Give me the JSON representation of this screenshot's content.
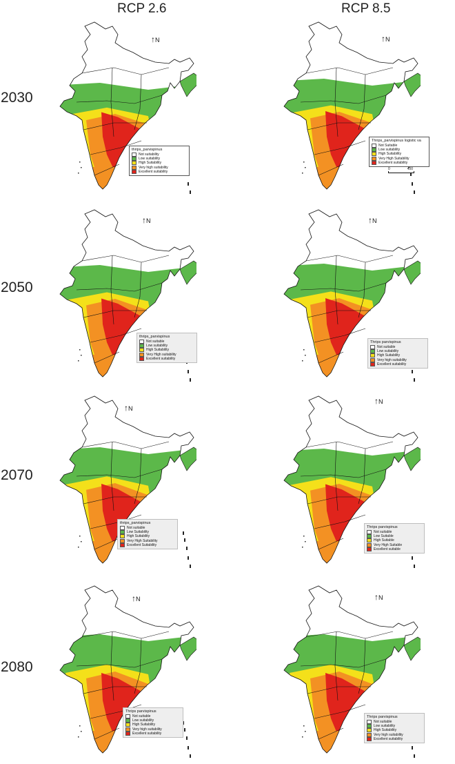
{
  "headers": {
    "col1": "RCP 2.6",
    "col2": "RCP 8.5"
  },
  "years": [
    "2030",
    "2050",
    "2070",
    "2080"
  ],
  "north_label": "N",
  "colors": {
    "not_suitable": "#ffffff",
    "low": "#5cb84a",
    "high": "#f4e01a",
    "very_high": "#f39123",
    "excellent": "#e0241c",
    "boundary": "#111111"
  },
  "legends": {
    "r0c0": {
      "title": "thrips_parvispinus",
      "items": [
        "Not suitability",
        "Low suitability",
        "High Suitability",
        "Very high suitability",
        "Excellent suitability"
      ]
    },
    "r0c1": {
      "title": "Thrips_parvispinus logistic va",
      "items": [
        "Not Suitable",
        "Low suitability",
        "High Suitability",
        "Very High Suitability",
        "Excellent suitability"
      ],
      "scale": [
        "0",
        "400"
      ]
    },
    "r1c0": {
      "title": "thrips_parvispinus",
      "items": [
        "Not suitable",
        "Low suitability",
        "High Suitability",
        "Very High suitability",
        "Excellent suitability"
      ]
    },
    "r1c1": {
      "title": "Thrips parvispinus",
      "items": [
        "Not suitable",
        "Low suitability",
        "High Suitability",
        "Very high suitability",
        "Excellent suitability"
      ]
    },
    "r2c0": {
      "title": "thrips_parvispinus",
      "items": [
        "Not suitable",
        "Low Suitability",
        "High Suitability",
        "Very High Suitability",
        "Excellent Suitability"
      ]
    },
    "r2c1": {
      "title": "Thrips parvispinus",
      "items": [
        "Not suitable",
        "Low Suitable",
        "High Suitable",
        "Very High Suitable",
        "Excellent suitable"
      ]
    },
    "r3c0": {
      "title": "Thrips parvispinus",
      "items": [
        "Not suitable",
        "Low suitability",
        "High Suitability",
        "Very high suitability",
        "Excellent suitability"
      ]
    },
    "r3c1": {
      "title": "Thrips parvispinus",
      "items": [
        "Not suitable",
        "Low suitability",
        "High Suitability",
        "Very high suitability",
        "Excellent suitability"
      ]
    }
  }
}
